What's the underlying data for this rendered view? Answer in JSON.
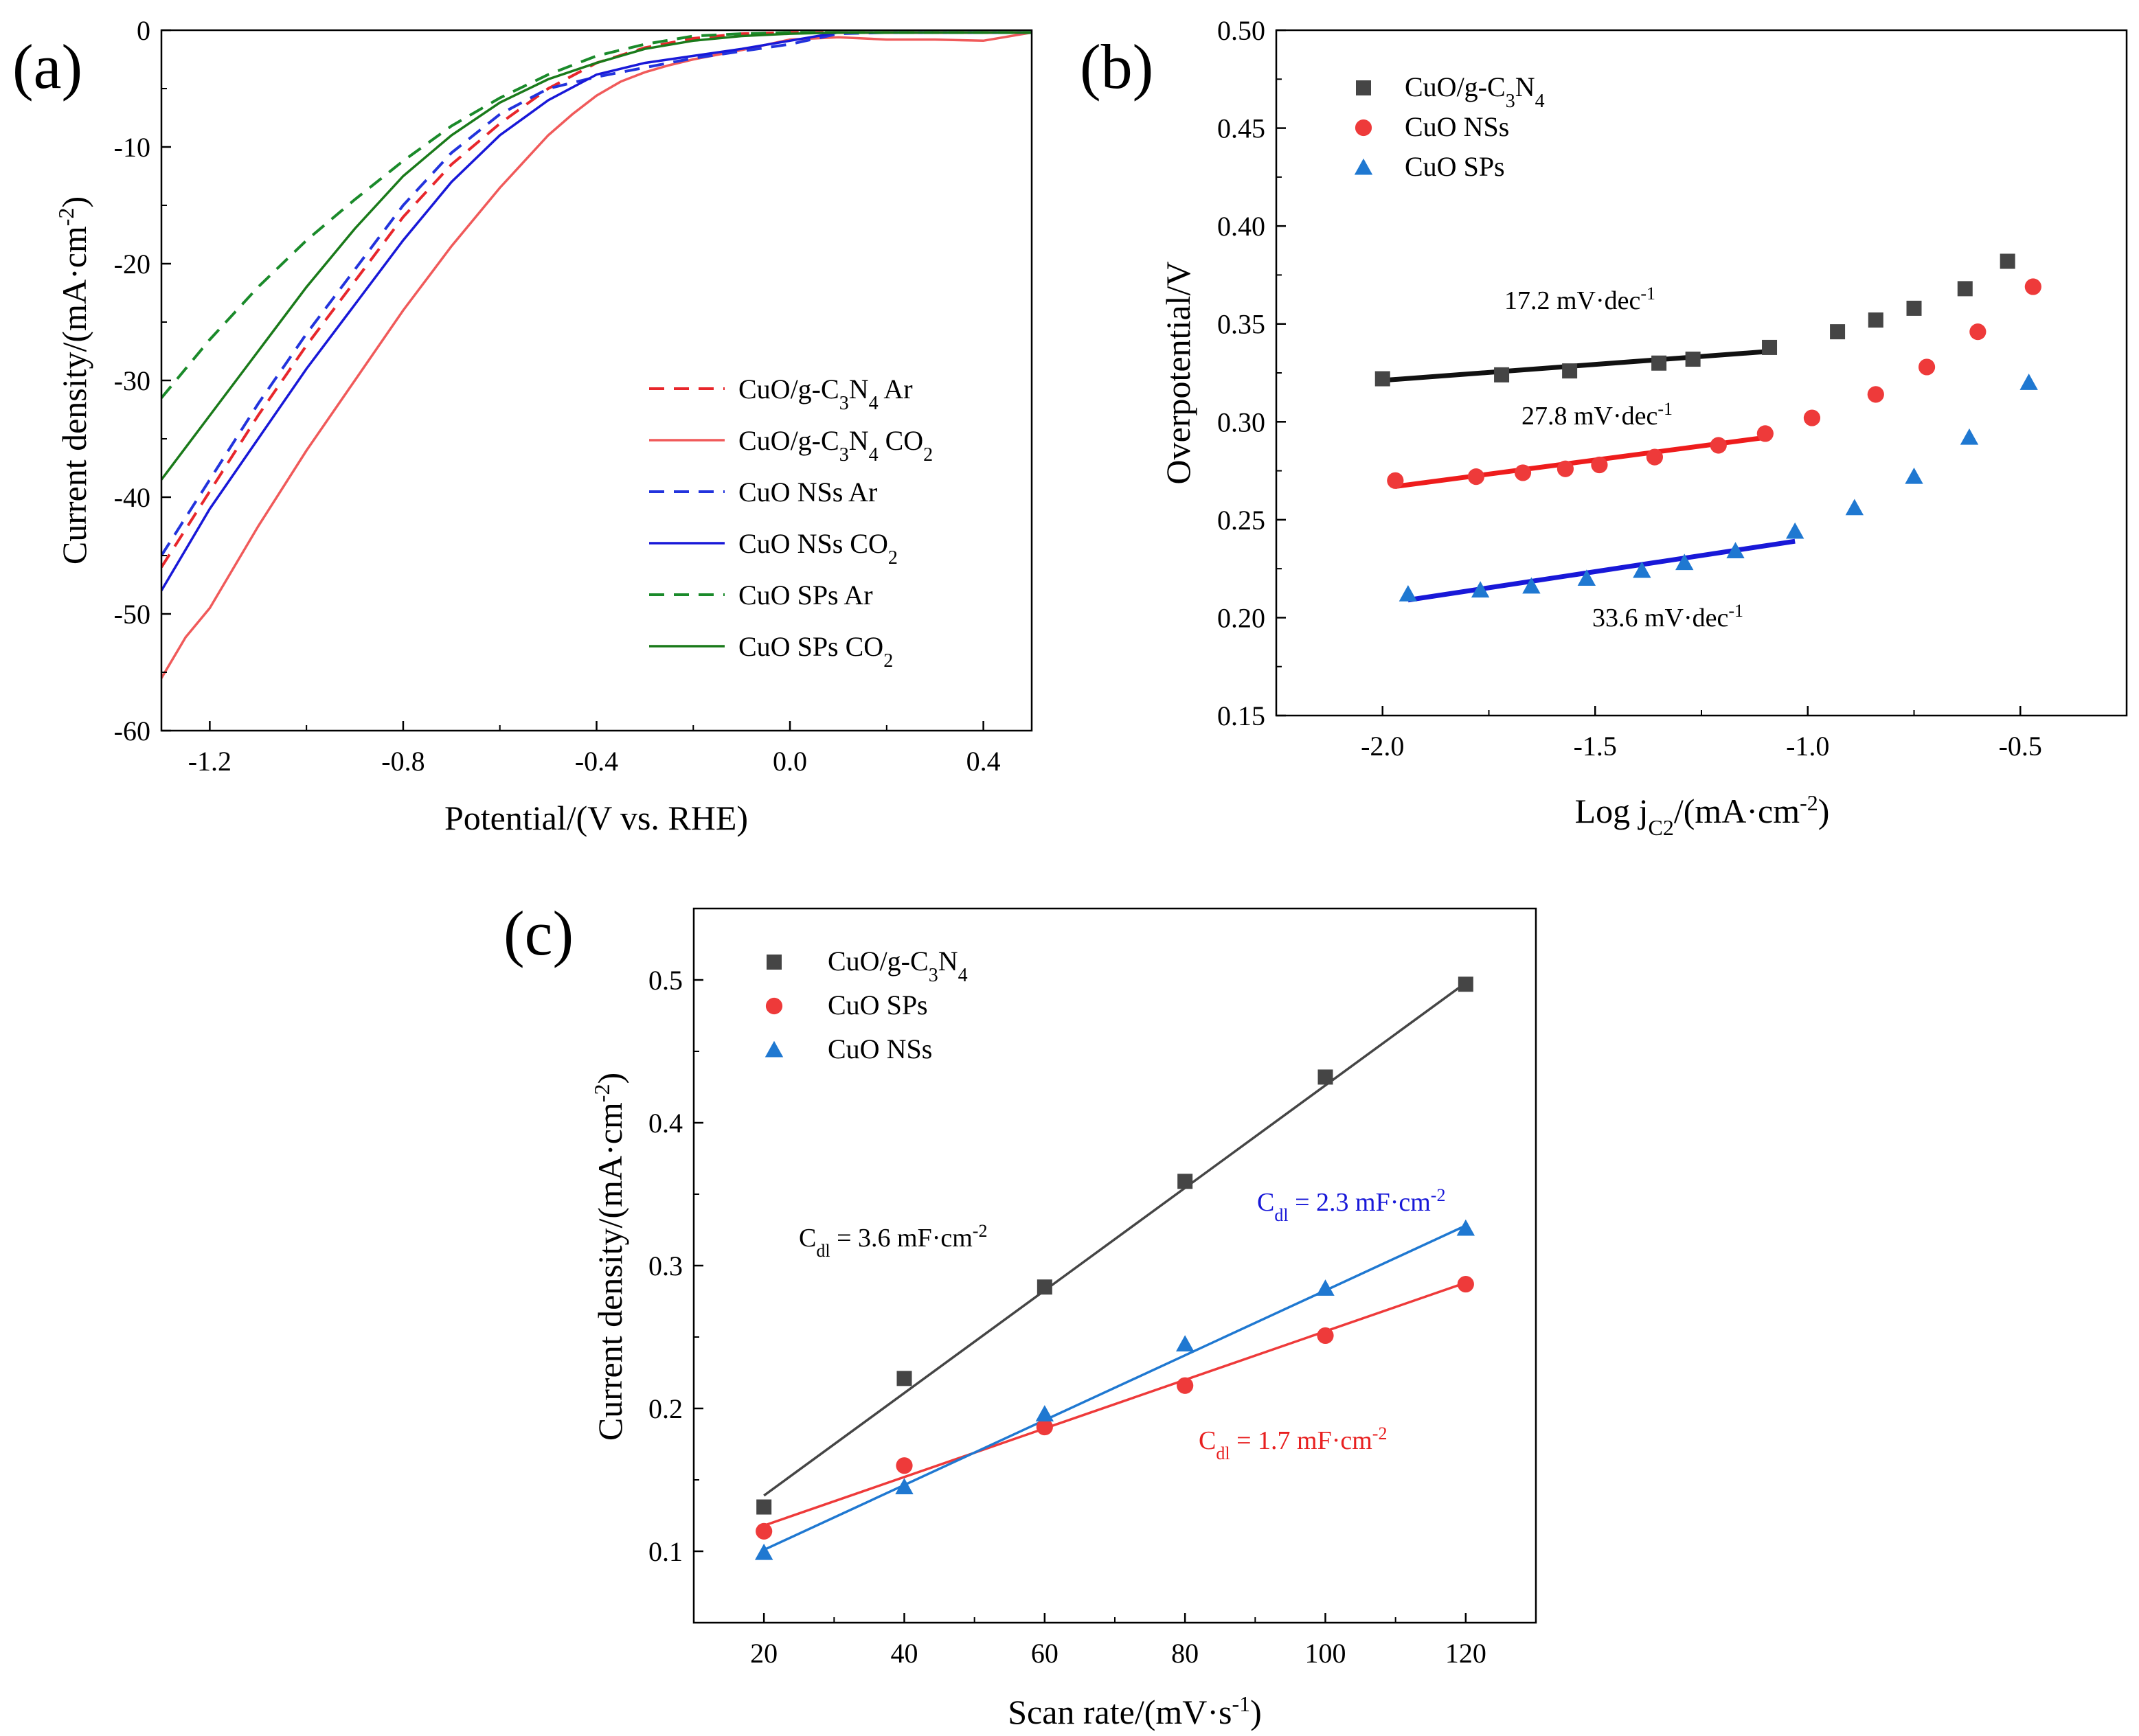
{
  "chart_data": [
    {
      "type": "line",
      "panel_label": "(a)",
      "xlabel": "Potential/(V vs. RHE)",
      "ylabel_main": "Current density/(mA·cm",
      "ylabel_sup": "-2",
      "ylabel_end": ")",
      "xlim": [
        -1.3,
        0.5
      ],
      "ylim": [
        -60,
        0
      ],
      "xticks": [
        -1.2,
        -0.8,
        -0.4,
        0.0,
        0.4
      ],
      "xtick_labels": [
        "-1.2",
        "-0.8",
        "-0.4",
        "0.0",
        "0.4"
      ],
      "yticks": [
        0,
        -10,
        -20,
        -30,
        -40,
        -50,
        -60
      ],
      "ytick_labels": [
        "0",
        "-10",
        "-20",
        "-30",
        "-40",
        "-50",
        "-60"
      ],
      "legend_position": "center-right",
      "series": [
        {
          "name": "CuO/g-C3N4 Ar",
          "label_pre": "CuO/g-C",
          "sub1": "3",
          "label_mid": "N",
          "sub2": "4",
          "label_post": " Ar",
          "color": "#e8262b",
          "dash": true,
          "x": [
            -1.3,
            -1.2,
            -1.1,
            -1.0,
            -0.9,
            -0.8,
            -0.7,
            -0.6,
            -0.5,
            -0.4,
            -0.3,
            -0.2,
            -0.1,
            0.0,
            0.1,
            0.2,
            0.3,
            0.4,
            0.5
          ],
          "y": [
            -46,
            -39.5,
            -33,
            -27,
            -21.5,
            -16,
            -11.5,
            -8,
            -5,
            -2.8,
            -1.5,
            -0.7,
            -0.3,
            -0.2,
            -0.2,
            -0.2,
            -0.2,
            -0.2,
            -0.2
          ]
        },
        {
          "name": "CuO/g-C3N4 CO2",
          "label_pre": "CuO/g-C",
          "sub1": "3",
          "label_mid": "N",
          "sub2": "4",
          "label_post": " CO",
          "sub3": "2",
          "color": "#f05a5a",
          "dash": false,
          "x": [
            -1.3,
            -1.25,
            -1.2,
            -1.1,
            -1.0,
            -0.9,
            -0.8,
            -0.7,
            -0.6,
            -0.5,
            -0.45,
            -0.4,
            -0.35,
            -0.3,
            -0.25,
            -0.2,
            -0.1,
            0.0,
            0.1,
            0.2,
            0.3,
            0.4,
            0.5
          ],
          "y": [
            -55.5,
            -52,
            -49.5,
            -42.5,
            -36,
            -30,
            -24,
            -18.5,
            -13.5,
            -9,
            -7.2,
            -5.6,
            -4.4,
            -3.6,
            -3.0,
            -2.5,
            -1.7,
            -0.8,
            -0.6,
            -0.8,
            -0.8,
            -0.9,
            -0.2
          ]
        },
        {
          "name": "CuO NSs Ar",
          "label_pre": "CuO NSs Ar",
          "color": "#2233dd",
          "dash": true,
          "x": [
            -1.3,
            -1.2,
            -1.1,
            -1.0,
            -0.9,
            -0.8,
            -0.7,
            -0.6,
            -0.5,
            -0.4,
            -0.3,
            -0.2,
            -0.1,
            0.0,
            0.1,
            0.2,
            0.3,
            0.4,
            0.5
          ],
          "y": [
            -45,
            -38.5,
            -32,
            -26,
            -20.5,
            -15,
            -10.5,
            -7.2,
            -5,
            -4,
            -3.2,
            -2.4,
            -1.8,
            -1.2,
            -0.3,
            -0.2,
            -0.2,
            -0.2,
            -0.2
          ]
        },
        {
          "name": "CuO NSs CO2",
          "label_pre": "CuO NSs CO",
          "sub3": "2",
          "color": "#1818d8",
          "dash": false,
          "x": [
            -1.3,
            -1.2,
            -1.1,
            -1.0,
            -0.9,
            -0.8,
            -0.7,
            -0.6,
            -0.5,
            -0.4,
            -0.3,
            -0.25,
            -0.2,
            -0.1,
            0.0,
            0.1,
            0.2,
            0.3,
            0.4,
            0.5
          ],
          "y": [
            -48,
            -41,
            -35,
            -29,
            -23.5,
            -18,
            -13,
            -9,
            -6,
            -3.8,
            -2.8,
            -2.5,
            -2.2,
            -1.6,
            -0.9,
            -0.2,
            -0.2,
            -0.2,
            -0.2,
            -0.2
          ]
        },
        {
          "name": "CuO SPs Ar",
          "label_pre": "CuO SPs Ar",
          "color": "#1a8a2a",
          "dash": true,
          "x": [
            -1.3,
            -1.2,
            -1.1,
            -1.0,
            -0.9,
            -0.8,
            -0.7,
            -0.6,
            -0.5,
            -0.4,
            -0.3,
            -0.2,
            -0.1,
            0.0,
            0.1,
            0.2,
            0.3,
            0.4,
            0.5
          ],
          "y": [
            -31.5,
            -26.5,
            -22,
            -18,
            -14.5,
            -11.2,
            -8.2,
            -5.8,
            -3.8,
            -2.2,
            -1.2,
            -0.5,
            -0.3,
            -0.2,
            -0.2,
            -0.2,
            -0.2,
            -0.2,
            -0.2
          ]
        },
        {
          "name": "CuO SPs CO2",
          "label_pre": "CuO SPs CO",
          "sub3": "2",
          "color": "#1a7a1a",
          "dash": false,
          "x": [
            -1.3,
            -1.2,
            -1.1,
            -1.0,
            -0.9,
            -0.8,
            -0.7,
            -0.6,
            -0.5,
            -0.4,
            -0.3,
            -0.2,
            -0.1,
            0.0,
            0.1,
            0.2,
            0.3,
            0.4,
            0.5
          ],
          "y": [
            -38.5,
            -33,
            -27.5,
            -22,
            -17,
            -12.5,
            -9,
            -6.2,
            -4.2,
            -2.8,
            -1.6,
            -0.9,
            -0.5,
            -0.3,
            -0.2,
            -0.2,
            -0.2,
            -0.2,
            -0.2
          ]
        }
      ]
    },
    {
      "type": "scatter",
      "panel_label": "(b)",
      "xlabel_main": "Log j",
      "xlabel_sub": "C2",
      "xlabel_mid": "/(mA·cm",
      "xlabel_sup": "-2",
      "xlabel_end": ")",
      "ylabel": "Overpotential/V",
      "xlim": [
        -2.25,
        -0.25
      ],
      "ylim": [
        0.15,
        0.5
      ],
      "xticks": [
        -2.0,
        -1.5,
        -1.0,
        -0.5
      ],
      "xtick_labels": [
        "-2.0",
        "-1.5",
        "-1.0",
        "-0.5"
      ],
      "yticks": [
        0.15,
        0.2,
        0.25,
        0.3,
        0.35,
        0.4,
        0.45,
        0.5
      ],
      "ytick_labels": [
        "0.15",
        "0.20",
        "0.25",
        "0.30",
        "0.35",
        "0.40",
        "0.45",
        "0.50"
      ],
      "legend_position": "top-left",
      "series": [
        {
          "name": "CuO/g-C3N4",
          "label_pre": "CuO/g-C",
          "sub1": "3",
          "label_mid": "N",
          "sub2": "4",
          "marker": "square",
          "color": "#454545",
          "x": [
            -2.0,
            -1.72,
            -1.56,
            -1.35,
            -1.27,
            -1.09,
            -0.93,
            -0.84,
            -0.75,
            -0.63,
            -0.53
          ],
          "y": [
            0.322,
            0.324,
            0.326,
            0.33,
            0.332,
            0.338,
            0.346,
            0.352,
            0.358,
            0.368,
            0.382
          ],
          "fit": {
            "x": [
              -2.01,
              -1.09
            ],
            "y": [
              0.321,
              0.336
            ],
            "color": "#111111"
          },
          "slope_main": "17.2 mV·dec",
          "slope_sup": "-1"
        },
        {
          "name": "CuO NSs",
          "label_pre": "CuO NSs",
          "marker": "circle",
          "color": "#ee3a3a",
          "x": [
            -1.97,
            -1.78,
            -1.67,
            -1.57,
            -1.49,
            -1.36,
            -1.21,
            -1.1,
            -0.99,
            -0.84,
            -0.72,
            -0.6,
            -0.47
          ],
          "y": [
            0.27,
            0.272,
            0.274,
            0.276,
            0.278,
            0.282,
            0.288,
            0.294,
            0.302,
            0.314,
            0.328,
            0.346,
            0.369
          ],
          "fit": {
            "x": [
              -1.97,
              -1.1
            ],
            "y": [
              0.267,
              0.292
            ],
            "color": "#ee1c1c"
          },
          "slope_main": "27.8 mV·dec",
          "slope_sup": "-1"
        },
        {
          "name": "CuO SPs",
          "label_pre": "CuO SPs",
          "marker": "triangle",
          "color": "#1f78d1",
          "x": [
            -1.94,
            -1.77,
            -1.65,
            -1.52,
            -1.39,
            -1.29,
            -1.17,
            -1.03,
            -0.89,
            -0.75,
            -0.62,
            -0.48
          ],
          "y": [
            0.212,
            0.214,
            0.216,
            0.22,
            0.224,
            0.228,
            0.234,
            0.244,
            0.256,
            0.272,
            0.292,
            0.32
          ],
          "fit": {
            "x": [
              -1.94,
              -1.03
            ],
            "y": [
              0.209,
              0.239
            ],
            "color": "#1818d8"
          },
          "slope_main": "33.6 mV·dec",
          "slope_sup": "-1"
        }
      ]
    },
    {
      "type": "scatter",
      "panel_label": "(c)",
      "xlabel_main": "Scan rate/(mV·s",
      "xlabel_sup": "-1",
      "xlabel_end": ")",
      "ylabel_main": "Current density/(mA·cm",
      "ylabel_sup": "-2",
      "ylabel_end": ")",
      "xlim": [
        10,
        130
      ],
      "ylim": [
        0.05,
        0.55
      ],
      "xticks": [
        20,
        40,
        60,
        80,
        100,
        120
      ],
      "xtick_labels": [
        "20",
        "40",
        "60",
        "80",
        "100",
        "120"
      ],
      "yticks": [
        0.1,
        0.2,
        0.3,
        0.4,
        0.5
      ],
      "ytick_labels": [
        "0.1",
        "0.2",
        "0.3",
        "0.4",
        "0.5"
      ],
      "legend_position": "top-left",
      "series": [
        {
          "name": "CuO/g-C3N4",
          "label_pre": "CuO/g-C",
          "sub1": "3",
          "label_mid": "N",
          "sub2": "4",
          "marker": "square",
          "color": "#454545",
          "x": [
            20,
            40,
            60,
            80,
            100,
            120
          ],
          "y": [
            0.131,
            0.221,
            0.285,
            0.359,
            0.432,
            0.497
          ],
          "fit": {
            "x": [
              20,
              120
            ],
            "y": [
              0.139,
              0.498
            ],
            "color": "#454545"
          },
          "cdl_pre": "C",
          "cdl_sub": "dl",
          "cdl_main": " = 3.6 mF·cm",
          "cdl_sup": "-2",
          "cdl_color": "#000000"
        },
        {
          "name": "CuO SPs",
          "label_pre": "CuO SPs",
          "marker": "circle",
          "color": "#ee3a3a",
          "x": [
            20,
            40,
            60,
            80,
            100,
            120
          ],
          "y": [
            0.114,
            0.16,
            0.187,
            0.216,
            0.251,
            0.287
          ],
          "fit": {
            "x": [
              20,
              120
            ],
            "y": [
              0.118,
              0.288
            ],
            "color": "#ee3a3a"
          },
          "cdl_pre": "C",
          "cdl_sub": "dl",
          "cdl_main": " = 1.7 mF·cm",
          "cdl_sup": "-2",
          "cdl_color": "#e82020"
        },
        {
          "name": "CuO NSs",
          "label_pre": "CuO NSs",
          "marker": "triangle",
          "color": "#1f78d1",
          "x": [
            20,
            40,
            60,
            80,
            100,
            120
          ],
          "y": [
            0.099,
            0.145,
            0.196,
            0.245,
            0.284,
            0.326
          ],
          "fit": {
            "x": [
              20,
              120
            ],
            "y": [
              0.101,
              0.328
            ],
            "color": "#1f78d1"
          },
          "cdl_pre": "C",
          "cdl_sub": "dl",
          "cdl_main": " = 2.3 mF·cm",
          "cdl_sup": "-2",
          "cdl_color": "#1818d8"
        }
      ]
    }
  ]
}
